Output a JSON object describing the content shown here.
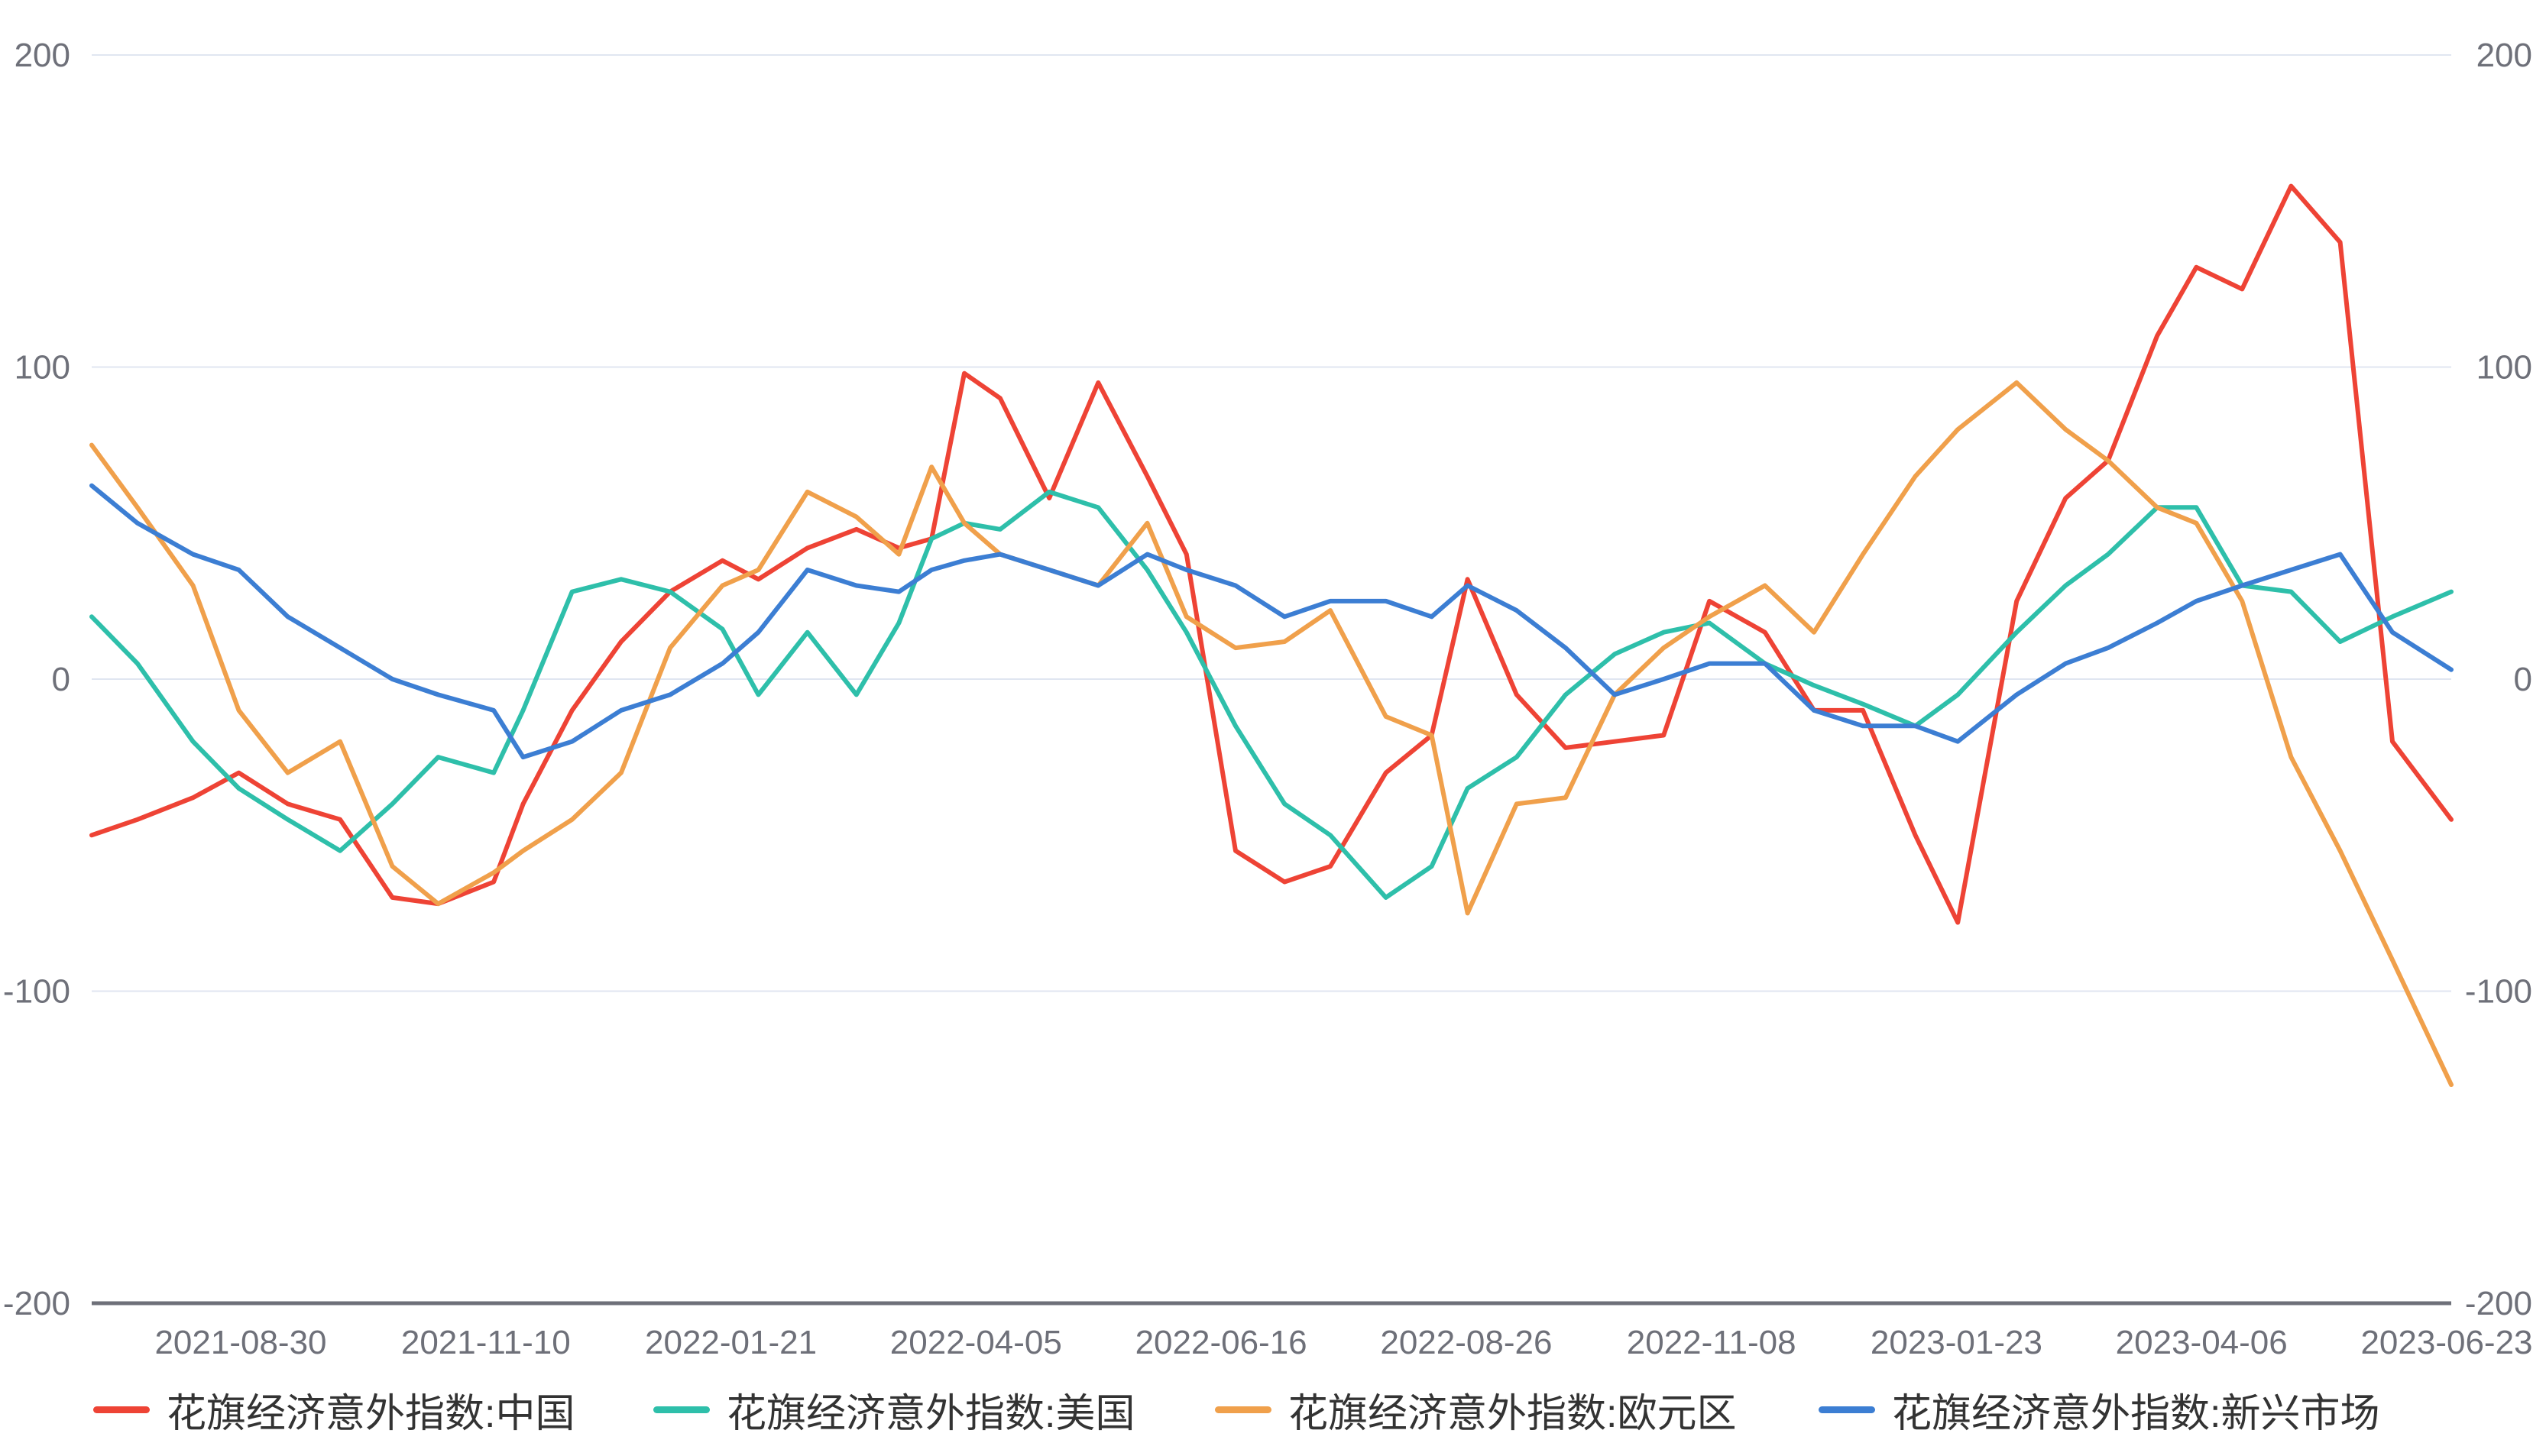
{
  "chart_data": {
    "type": "line",
    "ylim": [
      -200,
      200
    ],
    "y_ticks": [
      200,
      100,
      0,
      -100,
      -200
    ],
    "x_tick_labels": [
      "2021-08-30",
      "2021-11-10",
      "2022-01-21",
      "2022-04-05",
      "2022-06-16",
      "2022-08-26",
      "2022-11-08",
      "2023-01-23",
      "2023-04-06",
      "2023-06-23"
    ],
    "x": [
      "2021-07-01",
      "2021-07-15",
      "2021-08-01",
      "2021-08-15",
      "2021-08-30",
      "2021-09-15",
      "2021-10-01",
      "2021-10-15",
      "2021-11-01",
      "2021-11-10",
      "2021-11-25",
      "2021-12-10",
      "2021-12-25",
      "2022-01-10",
      "2022-01-21",
      "2022-02-05",
      "2022-02-20",
      "2022-03-05",
      "2022-03-15",
      "2022-03-25",
      "2022-04-05",
      "2022-04-20",
      "2022-05-05",
      "2022-05-20",
      "2022-06-01",
      "2022-06-16",
      "2022-07-01",
      "2022-07-15",
      "2022-08-01",
      "2022-08-15",
      "2022-08-26",
      "2022-09-10",
      "2022-09-25",
      "2022-10-10",
      "2022-10-25",
      "2022-11-08",
      "2022-11-25",
      "2022-12-10",
      "2022-12-25",
      "2023-01-10",
      "2023-01-23",
      "2023-02-10",
      "2023-02-25",
      "2023-03-10",
      "2023-03-25",
      "2023-04-06",
      "2023-04-20",
      "2023-05-05",
      "2023-05-20",
      "2023-06-05",
      "2023-06-23"
    ],
    "series": [
      {
        "name": "花旗经济意外指数:中国",
        "color": "#ee4335",
        "values": [
          -50,
          -45,
          -38,
          -30,
          -40,
          -45,
          -70,
          -72,
          -65,
          -40,
          -10,
          12,
          28,
          38,
          32,
          42,
          48,
          42,
          45,
          98,
          90,
          58,
          95,
          65,
          40,
          -55,
          -65,
          -60,
          -30,
          -18,
          32,
          -5,
          -22,
          -20,
          -18,
          25,
          15,
          -10,
          -10,
          -50,
          -78,
          25,
          58,
          70,
          110,
          132,
          125,
          158,
          140,
          -20,
          -45
        ]
      },
      {
        "name": "花旗经济意外指数:美国",
        "color": "#2ebfaa",
        "values": [
          20,
          5,
          -20,
          -35,
          -45,
          -55,
          -40,
          -25,
          -30,
          -10,
          28,
          32,
          28,
          16,
          -5,
          15,
          -5,
          18,
          45,
          50,
          48,
          60,
          55,
          35,
          15,
          -15,
          -40,
          -50,
          -70,
          -60,
          -35,
          -25,
          -5,
          8,
          15,
          18,
          5,
          -2,
          -8,
          -15,
          -5,
          15,
          30,
          40,
          55,
          55,
          30,
          28,
          12,
          20,
          28
        ]
      },
      {
        "name": "花旗经济意外指数:欧元区",
        "color": "#f0a04b",
        "values": [
          75,
          55,
          30,
          -10,
          -30,
          -20,
          -60,
          -72,
          -62,
          -55,
          -45,
          -30,
          10,
          30,
          35,
          60,
          52,
          40,
          68,
          50,
          40,
          35,
          30,
          50,
          20,
          10,
          12,
          22,
          -12,
          -18,
          -75,
          -40,
          -38,
          -5,
          10,
          20,
          30,
          15,
          40,
          65,
          80,
          95,
          80,
          70,
          55,
          50,
          25,
          -25,
          -55,
          -90,
          -130
        ]
      },
      {
        "name": "花旗经济意外指数:新兴市场",
        "color": "#3c7ed3",
        "values": [
          62,
          50,
          40,
          35,
          20,
          10,
          0,
          -5,
          -10,
          -25,
          -20,
          -10,
          -5,
          5,
          15,
          35,
          30,
          28,
          35,
          38,
          40,
          35,
          30,
          40,
          35,
          30,
          20,
          25,
          25,
          20,
          30,
          22,
          10,
          -5,
          0,
          5,
          5,
          -10,
          -15,
          -15,
          -20,
          -5,
          5,
          10,
          18,
          25,
          30,
          35,
          40,
          15,
          3
        ]
      }
    ]
  }
}
